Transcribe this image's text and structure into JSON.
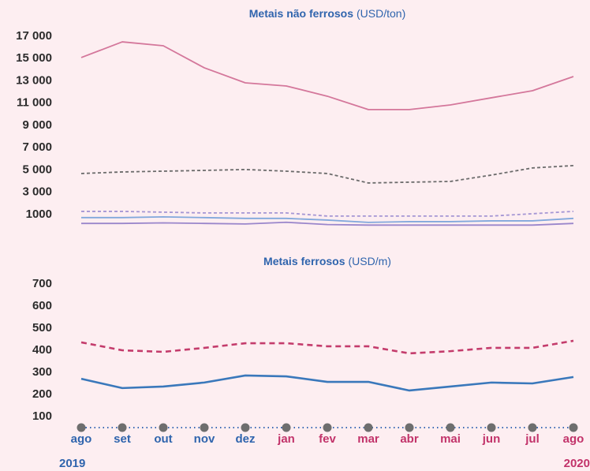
{
  "chart_data": [
    {
      "type": "line",
      "title": "Metais não ferrosos",
      "unit": "(USD/ton)",
      "ylim": [
        0,
        17000
      ],
      "yticks": [
        {
          "value": 17000,
          "label": "17 000"
        },
        {
          "value": 15000,
          "label": "15 000"
        },
        {
          "value": 13000,
          "label": "13 000"
        },
        {
          "value": 11000,
          "label": "11 000"
        },
        {
          "value": 9000,
          "label": "9 000"
        },
        {
          "value": 7000,
          "label": "7 000"
        },
        {
          "value": 5000,
          "label": "5 000"
        },
        {
          "value": 3000,
          "label": "3 000"
        },
        1000
      ],
      "series": [
        {
          "color": "#d4779b",
          "dash": false,
          "values": [
            15090,
            16500,
            16150,
            14170,
            12820,
            12540,
            11620,
            10420,
            10420,
            10840,
            11480,
            12110,
            13390
          ]
        },
        {
          "color": "#6b6b6b",
          "dash": true,
          "values": [
            4680,
            4820,
            4890,
            4960,
            5040,
            4890,
            4680,
            3830,
            3900,
            3970,
            4540,
            5180,
            5390
          ]
        },
        {
          "color": "#a596d4",
          "dash": true,
          "values": [
            1280,
            1280,
            1210,
            1140,
            1140,
            1140,
            860,
            860,
            860,
            860,
            860,
            1070,
            1280
          ]
        },
        {
          "color": "#82a8dc",
          "dash": false,
          "values": [
            720,
            720,
            790,
            720,
            650,
            650,
            500,
            290,
            360,
            360,
            430,
            430,
            650
          ]
        },
        {
          "color": "#9a86cb",
          "dash": false,
          "values": [
            200,
            200,
            250,
            200,
            150,
            300,
            100,
            50,
            50,
            50,
            50,
            50,
            200
          ]
        }
      ]
    },
    {
      "type": "line",
      "title": "Metais ferrosos",
      "unit": "(USD/m)",
      "ylim": [
        50,
        700
      ],
      "yticks": [
        700,
        600,
        500,
        400,
        300,
        200,
        100
      ],
      "categories": [
        "ago",
        "set",
        "out",
        "nov",
        "dez",
        "jan",
        "fev",
        "mar",
        "abr",
        "mai",
        "jun",
        "jul",
        "ago"
      ],
      "category_colors": [
        "#2f64ad",
        "#2f64ad",
        "#2f64ad",
        "#2f64ad",
        "#2f64ad",
        "#c2336a",
        "#c2336a",
        "#c2336a",
        "#c2336a",
        "#c2336a",
        "#c2336a",
        "#c2336a",
        "#c2336a"
      ],
      "years": [
        "2019",
        "2020"
      ],
      "year_colors": [
        "#2f64ad",
        "#c2336a"
      ],
      "series": [
        {
          "color": "#c43c6c",
          "dash": true,
          "values": [
            436,
            400,
            393,
            411,
            432,
            432,
            418,
            418,
            386,
            396,
            411,
            411,
            443
          ]
        },
        {
          "color": "#3a78bb",
          "dash": false,
          "values": [
            271,
            229,
            236,
            254,
            286,
            282,
            257,
            257,
            218,
            236,
            254,
            250,
            279
          ]
        }
      ]
    }
  ]
}
